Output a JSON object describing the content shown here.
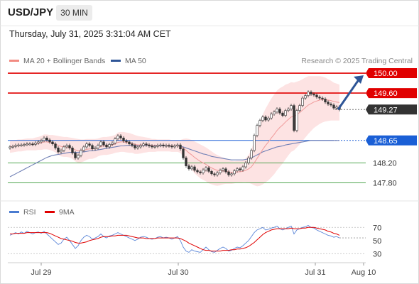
{
  "header": {
    "pair": "USD/JPY",
    "timeframe": "30 MIN"
  },
  "datetime": "Thursday, July 31, 2025 3:31:04 AM CET",
  "credit": "Research © 2025 Trading Central",
  "legend_main": [
    {
      "label": "MA 20 + Bollinger Bands",
      "color": "#f28b82"
    },
    {
      "label": "MA 50",
      "color": "#2e5597"
    }
  ],
  "legend_rsi": [
    {
      "label": "RSI",
      "color": "#4a7bd0"
    },
    {
      "label": "9MA",
      "color": "#e00000"
    }
  ],
  "colors": {
    "resistance": "#e00000",
    "pivot": "#1a5fd6",
    "support": "#3a9a3a",
    "last": "#333333",
    "arrow": "#2e5597",
    "band_fill": "#fde3e3"
  },
  "chart_data": [
    {
      "type": "candlestick",
      "title": "USD/JPY 30 MIN",
      "ylim": [
        147.65,
        150.15
      ],
      "x_tick_labels": [
        "Jul 29",
        "Jul 30",
        "Jul 31",
        "Aug 10"
      ],
      "levels": [
        {
          "value": 150.0,
          "label": "150.00",
          "kind": "resistance"
        },
        {
          "value": 149.6,
          "label": "149.60",
          "kind": "resistance"
        },
        {
          "value": 149.27,
          "label": "149.27",
          "kind": "last"
        },
        {
          "value": 148.65,
          "label": "148.65",
          "kind": "pivot"
        },
        {
          "value": 148.2,
          "label": "148.20",
          "kind": "support"
        },
        {
          "value": 147.8,
          "label": "147.80",
          "kind": "support"
        }
      ],
      "projection": {
        "from": 149.27,
        "to": 150.0
      },
      "closes": [
        148.52,
        148.53,
        148.55,
        148.56,
        148.56,
        148.57,
        148.58,
        148.58,
        148.57,
        148.6,
        148.62,
        148.65,
        148.7,
        148.66,
        148.62,
        148.58,
        148.5,
        148.42,
        148.45,
        148.52,
        148.55,
        148.5,
        148.4,
        148.3,
        148.35,
        148.45,
        148.52,
        148.58,
        148.55,
        148.48,
        148.5,
        148.55,
        148.62,
        148.56,
        148.52,
        148.57,
        148.6,
        148.68,
        148.74,
        148.7,
        148.64,
        148.62,
        148.58,
        148.55,
        148.5,
        148.52,
        148.55,
        148.58,
        148.56,
        148.54,
        148.52,
        148.53,
        148.55,
        148.56,
        148.54,
        148.55,
        148.54,
        148.52,
        148.54,
        148.56,
        148.48,
        148.3,
        148.14,
        148.08,
        148.12,
        148.05,
        148.02,
        148.0,
        148.06,
        148.1,
        148.03,
        147.98,
        147.96,
        148.0,
        148.05,
        148.08,
        148.02,
        147.96,
        147.98,
        148.04,
        148.08,
        148.06,
        148.12,
        148.2,
        148.3,
        148.45,
        148.75,
        148.95,
        149.05,
        149.12,
        149.06,
        149.1,
        149.18,
        149.22,
        149.28,
        149.2,
        149.15,
        149.25,
        149.28,
        149.35,
        148.85,
        149.25,
        149.35,
        149.5,
        149.55,
        149.62,
        149.58,
        149.56,
        149.52,
        149.5,
        149.48,
        149.42,
        149.38,
        149.36,
        149.3,
        149.32,
        149.27
      ],
      "ma20": [
        148.52,
        148.53,
        148.54,
        148.55,
        148.55,
        148.56,
        148.57,
        148.57,
        148.57,
        148.58,
        148.59,
        148.6,
        148.62,
        148.62,
        148.61,
        148.6,
        148.58,
        148.55,
        148.53,
        148.52,
        148.52,
        148.51,
        148.49,
        148.46,
        148.44,
        148.44,
        148.45,
        148.47,
        148.48,
        148.48,
        148.49,
        148.51,
        148.53,
        148.54,
        148.54,
        148.55,
        148.56,
        148.58,
        148.61,
        148.62,
        148.62,
        148.61,
        148.6,
        148.59,
        148.57,
        148.56,
        148.56,
        148.56,
        148.56,
        148.56,
        148.55,
        148.55,
        148.55,
        148.55,
        148.55,
        148.55,
        148.55,
        148.54,
        148.54,
        148.54,
        148.53,
        148.5,
        148.45,
        148.4,
        148.36,
        148.31,
        148.27,
        148.23,
        148.2,
        148.17,
        148.13,
        148.1,
        148.07,
        148.05,
        148.04,
        148.04,
        148.03,
        148.02,
        148.01,
        148.01,
        148.02,
        148.02,
        148.03,
        148.05,
        148.08,
        148.12,
        148.2,
        148.29,
        148.38,
        148.47,
        148.55,
        148.62,
        148.7,
        148.77,
        148.85,
        148.91,
        148.96,
        149.02,
        149.07,
        149.12,
        149.13,
        149.17,
        149.21,
        149.26,
        149.31,
        149.36,
        149.39,
        149.42,
        149.44,
        149.46,
        149.47,
        149.47,
        149.46,
        149.45,
        149.43,
        149.42,
        149.41
      ],
      "ma50": [
        147.92,
        147.95,
        147.98,
        148.01,
        148.04,
        148.07,
        148.1,
        148.13,
        148.16,
        148.19,
        148.22,
        148.25,
        148.28,
        148.31,
        148.33,
        148.35,
        148.36,
        148.37,
        148.38,
        148.39,
        148.4,
        148.41,
        148.41,
        148.41,
        148.41,
        148.42,
        148.42,
        148.43,
        148.44,
        148.44,
        148.45,
        148.46,
        148.47,
        148.48,
        148.49,
        148.5,
        148.51,
        148.52,
        148.53,
        148.54,
        148.54,
        148.55,
        148.55,
        148.55,
        148.55,
        148.55,
        148.55,
        148.55,
        148.55,
        148.55,
        148.54,
        148.54,
        148.54,
        148.54,
        148.54,
        148.54,
        148.54,
        148.54,
        148.54,
        148.54,
        148.53,
        148.52,
        148.5,
        148.48,
        148.46,
        148.44,
        148.42,
        148.4,
        148.38,
        148.37,
        148.35,
        148.33,
        148.32,
        148.31,
        148.3,
        148.29,
        148.28,
        148.27,
        148.26,
        148.26,
        148.26,
        148.26,
        148.26,
        148.27,
        148.28,
        148.3,
        148.33,
        148.36,
        148.39,
        148.42,
        148.44,
        148.46,
        148.48,
        148.5,
        148.52,
        148.53,
        148.54,
        148.56,
        148.57,
        148.58,
        148.59,
        148.6,
        148.61,
        148.62,
        148.63,
        148.64,
        148.65,
        148.65,
        148.65,
        148.65,
        148.65,
        148.65,
        148.65,
        148.65,
        148.65,
        148.65,
        148.65
      ],
      "band_width": [
        0.12,
        0.12,
        0.12,
        0.12,
        0.12,
        0.12,
        0.12,
        0.12,
        0.12,
        0.13,
        0.13,
        0.14,
        0.15,
        0.15,
        0.15,
        0.16,
        0.17,
        0.19,
        0.2,
        0.2,
        0.2,
        0.2,
        0.21,
        0.23,
        0.24,
        0.23,
        0.22,
        0.21,
        0.2,
        0.2,
        0.19,
        0.18,
        0.18,
        0.18,
        0.18,
        0.18,
        0.18,
        0.18,
        0.2,
        0.2,
        0.2,
        0.2,
        0.2,
        0.19,
        0.19,
        0.18,
        0.17,
        0.16,
        0.15,
        0.14,
        0.13,
        0.13,
        0.12,
        0.12,
        0.12,
        0.12,
        0.12,
        0.12,
        0.12,
        0.12,
        0.13,
        0.18,
        0.24,
        0.28,
        0.3,
        0.32,
        0.33,
        0.34,
        0.34,
        0.34,
        0.34,
        0.33,
        0.32,
        0.31,
        0.29,
        0.27,
        0.25,
        0.24,
        0.23,
        0.22,
        0.22,
        0.22,
        0.22,
        0.24,
        0.28,
        0.34,
        0.45,
        0.56,
        0.64,
        0.7,
        0.74,
        0.77,
        0.79,
        0.8,
        0.8,
        0.79,
        0.77,
        0.75,
        0.72,
        0.7,
        0.68,
        0.66,
        0.64,
        0.62,
        0.6,
        0.58,
        0.55,
        0.52,
        0.5,
        0.48,
        0.46,
        0.44,
        0.42,
        0.4,
        0.38,
        0.37,
        0.36
      ],
      "rsi_panel": {
        "ylim": [
          20,
          80
        ],
        "y_tick_labels": [
          "70",
          "50",
          "30"
        ],
        "reference_lines": [
          70,
          30
        ],
        "rsi": [
          58,
          60,
          62,
          60,
          63,
          61,
          64,
          62,
          60,
          62,
          63,
          61,
          64,
          60,
          56,
          52,
          48,
          44,
          46,
          52,
          55,
          50,
          44,
          38,
          42,
          50,
          55,
          58,
          56,
          52,
          54,
          56,
          60,
          56,
          54,
          57,
          58,
          60,
          62,
          60,
          58,
          56,
          54,
          52,
          50,
          52,
          55,
          56,
          55,
          53,
          52,
          53,
          55,
          56,
          54,
          55,
          54,
          52,
          54,
          56,
          50,
          40,
          34,
          32,
          36,
          34,
          33,
          32,
          36,
          40,
          36,
          33,
          32,
          35,
          38,
          40,
          38,
          34,
          35,
          38,
          40,
          39,
          42,
          46,
          50,
          56,
          62,
          66,
          68,
          70,
          66,
          67,
          69,
          70,
          72,
          68,
          66,
          68,
          70,
          72,
          60,
          66,
          68,
          70,
          71,
          73,
          70,
          69,
          66,
          64,
          62,
          60,
          58,
          57,
          55,
          56,
          54
        ],
        "ma9": [
          60,
          60,
          61,
          61,
          61,
          61,
          62,
          62,
          62,
          62,
          62,
          62,
          62,
          62,
          61,
          59,
          57,
          55,
          53,
          52,
          51,
          50,
          49,
          47,
          46,
          46,
          47,
          48,
          50,
          51,
          52,
          53,
          55,
          56,
          56,
          56,
          57,
          57,
          58,
          58,
          58,
          58,
          57,
          56,
          55,
          54,
          54,
          54,
          53,
          53,
          53,
          53,
          54,
          54,
          54,
          54,
          54,
          54,
          54,
          54,
          53,
          51,
          49,
          46,
          44,
          42,
          40,
          38,
          36,
          35,
          35,
          34,
          34,
          34,
          34,
          35,
          35,
          35,
          36,
          36,
          37,
          37,
          38,
          39,
          41,
          44,
          47,
          51,
          55,
          59,
          62,
          64,
          66,
          67,
          68,
          68,
          68,
          68,
          68,
          69,
          68,
          68,
          68,
          69,
          69,
          70,
          70,
          70,
          69,
          68,
          67,
          66,
          64,
          63,
          61,
          60,
          58
        ]
      }
    }
  ]
}
